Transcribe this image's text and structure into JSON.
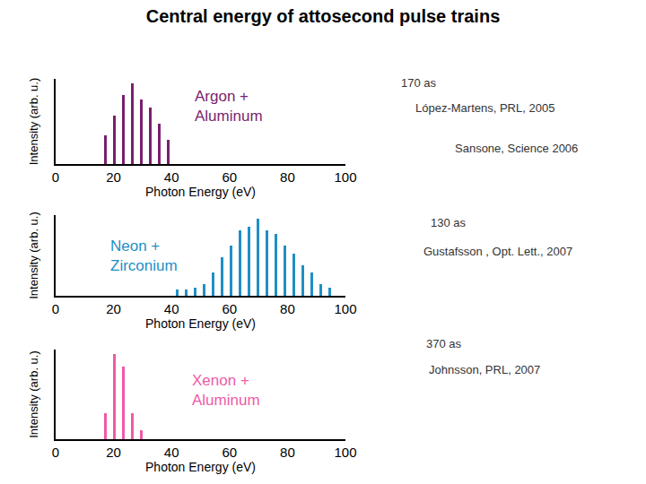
{
  "chart_data": [
    {
      "type": "bar",
      "title": "Central energy of attosecond pulse trains",
      "xlabel": "Photon Energy (eV)",
      "ylabel": "Intensity (arb. u.)",
      "x": [
        17.05,
        20.15,
        23.25,
        26.35,
        29.45,
        32.55,
        35.65,
        38.75
      ],
      "values": [
        0.35,
        0.6,
        0.85,
        1.0,
        0.8,
        0.7,
        0.5,
        0.3
      ],
      "color": "#7a1f6e",
      "xlim": [
        0,
        100
      ],
      "xticks": [
        0,
        20,
        40,
        60,
        80,
        100
      ],
      "ylim": [
        0,
        1.05
      ],
      "grid": false,
      "tick_labels": "x",
      "annotations": [
        "Argon +\nAluminum",
        "170 as",
        "López-Martens, PRL, 2005",
        "Sansone, Science 2006"
      ]
    },
    {
      "type": "bar",
      "xlabel": "Photon Energy (eV)",
      "ylabel": "Intensity (arb. u.)",
      "x": [
        41.85,
        44.95,
        48.05,
        51.15,
        54.25,
        57.35,
        60.45,
        63.55,
        66.65,
        69.75,
        72.85,
        75.95,
        79.05,
        82.15,
        85.25,
        88.35,
        91.45,
        94.55
      ],
      "values": [
        0.08,
        0.08,
        0.1,
        0.15,
        0.3,
        0.5,
        0.65,
        0.85,
        0.9,
        1.0,
        0.85,
        0.8,
        0.65,
        0.55,
        0.4,
        0.3,
        0.15,
        0.1
      ],
      "color": "#1f8fc4",
      "xlim": [
        0,
        100
      ],
      "xticks": [
        0,
        20,
        40,
        60,
        80,
        100
      ],
      "ylim": [
        0,
        1.05
      ],
      "grid": false,
      "tick_labels": "x",
      "annotations": [
        "Neon +\nZirconium",
        "130 as",
        "Gustafsson , Opt. Lett., 2007"
      ]
    },
    {
      "type": "bar",
      "xlabel": "Photon Energy (eV)",
      "ylabel": "Intensity (arb. u.)",
      "x": [
        17.05,
        20.15,
        23.25,
        26.35,
        29.45
      ],
      "values": [
        0.3,
        1.0,
        0.85,
        0.3,
        0.1
      ],
      "color": "#ee5aa8",
      "xlim": [
        0,
        100
      ],
      "xticks": [
        0,
        20,
        40,
        60,
        80,
        100
      ],
      "ylim": [
        0,
        1.05
      ],
      "grid": false,
      "tick_labels": "x",
      "annotations": [
        "Xenon +\nAluminum",
        "370 as",
        "Johnsson, PRL, 2007"
      ]
    }
  ]
}
